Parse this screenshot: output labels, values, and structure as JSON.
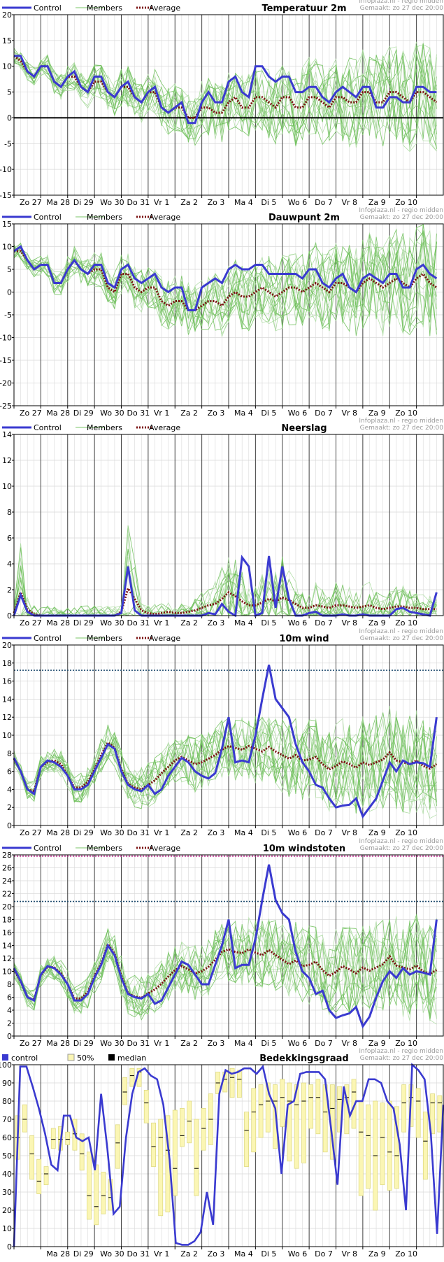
{
  "source": "Infoplaza.nl - regio midden",
  "made": "Gemaakt: zo 27 dec 20:00",
  "legend": {
    "control": "Control",
    "members": "Members",
    "average": "Average"
  },
  "cloud_legend": {
    "control": "control",
    "band": "50%",
    "median": "median"
  },
  "colors": {
    "control": "#3a3ad0",
    "members": "#6fbf5a",
    "members_light": "#a6d89a",
    "average": "#7a1010",
    "box_fill": "#fbf6b4",
    "box_edge": "#dcd87a",
    "grid": "#d8d8d8",
    "day_line": "#404040"
  },
  "days": [
    "Zo 27",
    "Ma 28",
    "Di 29",
    "Wo 30",
    "Do 31",
    "Vr 1",
    "Za 2",
    "Zo 3",
    "Ma 4",
    "Di 5",
    "Wo 6",
    "Do 7",
    "Vr 8",
    "Za 9",
    "Zo 10"
  ],
  "cloud_days": [
    "",
    "Ma 28",
    "Di 29",
    "Wo 30",
    "Do 31",
    "Vr 1",
    "Za 2",
    "Zo 3",
    "Ma 4",
    "Di 5",
    "Wo 6",
    "Do 7",
    "Vr 8",
    "Za 9",
    "Zo 10"
  ],
  "chart_data": [
    {
      "type": "line",
      "title": "Temperatuur 2m",
      "ylim": [
        -15,
        20
      ],
      "yticks": [
        -15,
        -10,
        -5,
        0,
        5,
        10,
        15,
        20
      ],
      "zero_line": true,
      "hlines": [],
      "x_unit": "6-hour steps from Zo 27",
      "series": [
        {
          "name": "Control",
          "values": [
            12,
            12,
            9,
            8,
            10,
            10,
            7,
            6,
            8,
            9,
            6,
            5,
            8,
            8,
            5,
            4,
            6,
            7,
            4,
            3,
            5,
            6,
            2,
            1,
            2,
            3,
            -1,
            -1,
            3,
            5,
            3,
            3,
            7,
            8,
            5,
            4,
            10,
            10,
            8,
            7,
            8,
            8,
            5,
            5,
            6,
            6,
            4,
            3,
            5,
            6,
            5,
            4,
            6,
            6,
            2,
            2,
            4,
            4,
            3,
            3,
            6,
            6,
            5,
            5
          ]
        },
        {
          "name": "Average",
          "values": [
            12,
            11,
            9,
            8,
            10,
            10,
            7,
            6,
            8,
            8,
            6,
            5,
            7,
            7,
            5,
            4,
            6,
            6,
            4,
            3,
            5,
            5,
            2,
            1,
            2,
            2,
            0,
            0,
            2,
            2,
            1,
            1,
            3,
            4,
            2,
            2,
            4,
            4,
            3,
            2,
            4,
            4,
            2,
            2,
            4,
            4,
            3,
            2,
            4,
            4,
            3,
            3,
            5,
            5,
            3,
            3,
            5,
            5,
            4,
            3,
            5,
            5,
            4,
            3
          ]
        }
      ]
    },
    {
      "type": "line",
      "title": "Dauwpunt 2m",
      "ylim": [
        -25,
        15
      ],
      "yticks": [
        -25,
        -20,
        -15,
        -10,
        -5,
        0,
        5,
        10,
        15
      ],
      "zero_line": false,
      "hlines": [],
      "x_unit": "6-hour steps from Zo 27",
      "series": [
        {
          "name": "Control",
          "values": [
            9,
            10,
            7,
            5,
            6,
            6,
            2,
            2,
            5,
            7,
            5,
            4,
            6,
            6,
            2,
            1,
            5,
            6,
            3,
            2,
            3,
            4,
            1,
            0,
            1,
            1,
            -4,
            -4,
            1,
            2,
            3,
            2,
            5,
            6,
            5,
            5,
            6,
            6,
            4,
            4,
            4,
            4,
            4,
            3,
            5,
            5,
            2,
            1,
            3,
            4,
            1,
            0,
            3,
            4,
            3,
            2,
            4,
            4,
            1,
            1,
            5,
            6,
            4,
            3
          ]
        },
        {
          "name": "Average",
          "values": [
            9,
            9,
            7,
            5,
            6,
            6,
            2,
            2,
            5,
            7,
            5,
            4,
            5,
            5,
            1,
            0,
            4,
            4,
            1,
            0,
            1,
            1,
            -2,
            -3,
            -2,
            -2,
            -4,
            -4,
            -3,
            -2,
            -2,
            -3,
            -1,
            0,
            -1,
            -1,
            0,
            1,
            0,
            -1,
            0,
            1,
            1,
            0,
            1,
            2,
            1,
            0,
            2,
            2,
            1,
            0,
            2,
            3,
            2,
            1,
            2,
            3,
            2,
            1,
            3,
            4,
            2,
            1
          ]
        }
      ]
    },
    {
      "type": "line",
      "title": "Neerslag",
      "ylim": [
        0,
        14
      ],
      "yticks": [
        0,
        2,
        4,
        6,
        8,
        10,
        12,
        14
      ],
      "zero_line": false,
      "hlines": [],
      "x_unit": "6-hour steps from Zo 27",
      "series": [
        {
          "name": "Control",
          "values": [
            0,
            1.6,
            0.3,
            0,
            0,
            0,
            0,
            0,
            0,
            0,
            0,
            0,
            0,
            0,
            0,
            0,
            0.2,
            3.8,
            0.4,
            0,
            0,
            0,
            0,
            0,
            0,
            0,
            0,
            0,
            0,
            0.2,
            0.1,
            0.9,
            0.3,
            0,
            4.5,
            3.8,
            0,
            0.2,
            4.6,
            0.6,
            3.8,
            1.3,
            0,
            0,
            0.2,
            0.3,
            0,
            0,
            0,
            0.1,
            0,
            0,
            0.1,
            0,
            0,
            0,
            0,
            0.5,
            0.6,
            0.3,
            0.2,
            0.1,
            0,
            1.8
          ]
        },
        {
          "name": "Average",
          "values": [
            0.2,
            1.8,
            0.5,
            0.1,
            0,
            0,
            0,
            0,
            0,
            0,
            0,
            0,
            0,
            0,
            0,
            0,
            0.3,
            2.1,
            1.3,
            0.4,
            0.2,
            0.1,
            0.2,
            0.3,
            0.2,
            0.2,
            0.3,
            0.4,
            0.6,
            0.8,
            0.9,
            1.3,
            1.8,
            1.5,
            1.1,
            0.8,
            0.8,
            1,
            1.3,
            1.1,
            1.4,
            1.2,
            0.9,
            0.6,
            0.6,
            0.8,
            0.7,
            0.6,
            0.8,
            0.8,
            0.7,
            0.6,
            0.7,
            0.8,
            0.6,
            0.5,
            0.6,
            0.7,
            0.7,
            0.6,
            0.6,
            0.5,
            0.5,
            0.5
          ]
        }
      ]
    },
    {
      "type": "line",
      "title": "10m wind",
      "ylim": [
        0,
        20
      ],
      "yticks": [
        0,
        2,
        4,
        6,
        8,
        10,
        12,
        14,
        16,
        18,
        20
      ],
      "zero_line": false,
      "hlines": [
        17.2
      ],
      "x_unit": "6-hour steps from Zo 27",
      "series": [
        {
          "name": "Control",
          "values": [
            7.5,
            6,
            4,
            3.5,
            6.5,
            7.2,
            7,
            6.5,
            5.5,
            4,
            4,
            4.5,
            6,
            7.5,
            9,
            8.5,
            6,
            4.5,
            4,
            3.8,
            4.5,
            3.5,
            4,
            5.5,
            6.5,
            7.5,
            7,
            6,
            5.5,
            5.2,
            5.8,
            8.5,
            12,
            7,
            7.2,
            7,
            10,
            14,
            17.8,
            14,
            13,
            12,
            9,
            7,
            6,
            4.5,
            4.2,
            3,
            2,
            2.2,
            2.3,
            3,
            1,
            2,
            3,
            5,
            7,
            6,
            7.2,
            6.8,
            7,
            6.9,
            6.5,
            12
          ]
        },
        {
          "name": "Average",
          "values": [
            7.4,
            6,
            4,
            3.8,
            6.5,
            7,
            7.2,
            6.8,
            5.5,
            4.2,
            4.2,
            4.8,
            6.2,
            7.8,
            9.2,
            8.6,
            6.2,
            4.6,
            4.2,
            4,
            4.5,
            5,
            5.8,
            6.5,
            7.2,
            7.6,
            7.2,
            6.8,
            7,
            7.4,
            7.8,
            8.4,
            8.8,
            8.6,
            8.4,
            8.8,
            8.5,
            8.2,
            8.7,
            8.2,
            7.8,
            7.4,
            7.8,
            7.2,
            7.3,
            7.6,
            6.8,
            6.2,
            6.6,
            7.1,
            6.8,
            6.4,
            7,
            6.7,
            7,
            7.3,
            8.1,
            7.2,
            7,
            6.8,
            7.2,
            6.6,
            6.3,
            6.8
          ]
        }
      ]
    },
    {
      "type": "line",
      "title": "10m windstoten",
      "ylim": [
        0,
        28
      ],
      "yticks": [
        0,
        2,
        4,
        6,
        8,
        10,
        12,
        14,
        16,
        18,
        20,
        22,
        24,
        26,
        28
      ],
      "zero_line": false,
      "hlines": [
        20.8,
        27.8
      ],
      "x_unit": "6-hour steps from Zo 27",
      "series": [
        {
          "name": "Control",
          "values": [
            10.5,
            8.5,
            6,
            5.5,
            9.5,
            10.8,
            10.5,
            9.5,
            8,
            5.5,
            5.5,
            6.5,
            9,
            11,
            14,
            12.5,
            9,
            6.5,
            6,
            5.8,
            6.5,
            5,
            5.5,
            7.5,
            9.5,
            11.5,
            11,
            9.5,
            8,
            8,
            11,
            14,
            18,
            10.5,
            11,
            11,
            15,
            21,
            26.5,
            21,
            19,
            18,
            13,
            10,
            9,
            6.5,
            7,
            4,
            2.8,
            3.2,
            3.5,
            4.5,
            1.5,
            3,
            6,
            8.5,
            10,
            9,
            10.5,
            9.5,
            10,
            9.8,
            9.5,
            18
          ]
        },
        {
          "name": "Average",
          "values": [
            10.3,
            8.4,
            6,
            5.6,
            9.4,
            10.7,
            10.6,
            9.7,
            8,
            5.8,
            5.8,
            6.8,
            9.2,
            11.2,
            14.2,
            12.7,
            9.3,
            6.6,
            6.1,
            5.9,
            6.6,
            7.2,
            8.1,
            9.2,
            10.2,
            10.8,
            10.3,
            9.7,
            10,
            10.7,
            11.8,
            13,
            13.4,
            13,
            12.8,
            13.4,
            12.9,
            12.5,
            13.3,
            12.5,
            11.8,
            11.1,
            11.7,
            10.8,
            11,
            11.5,
            10.2,
            9.3,
            9.9,
            10.8,
            10.3,
            9.7,
            10.6,
            10.1,
            10.6,
            11.1,
            12.3,
            10.9,
            10.6,
            10.3,
            10.9,
            10,
            9.6,
            10.2
          ]
        }
      ]
    },
    {
      "type": "bar",
      "title": "Bedekkingsgraad",
      "ylim": [
        0,
        100
      ],
      "yticks": [
        0,
        10,
        20,
        30,
        40,
        50,
        60,
        70,
        80,
        90,
        100
      ],
      "x_unit": "6-hour steps from Zo 27",
      "series": [
        {
          "name": "control",
          "values": [
            0,
            99,
            99,
            88,
            76,
            62,
            45,
            42,
            72,
            72,
            60,
            58,
            60,
            42,
            84,
            54,
            18,
            22,
            60,
            84,
            96,
            98,
            94,
            92,
            78,
            48,
            2,
            1,
            1,
            3,
            8,
            30,
            12,
            84,
            97,
            95,
            96,
            98,
            98,
            95,
            99,
            84,
            76,
            40,
            78,
            80,
            95,
            96,
            96,
            96,
            92,
            64,
            34,
            88,
            72,
            80,
            80,
            92,
            92,
            90,
            80,
            76,
            56,
            20,
            100,
            97,
            92,
            62,
            7,
            78
          ]
        },
        {
          "name": "median",
          "values": [
            60,
            70,
            51,
            36,
            40,
            59,
            59,
            59,
            62,
            51,
            28,
            22,
            28,
            27,
            57,
            85,
            94,
            96,
            79,
            55,
            60,
            53,
            43,
            61,
            69,
            43,
            65,
            70,
            90,
            92,
            93,
            92,
            64,
            74,
            78,
            80,
            80,
            82,
            80,
            78,
            80,
            82,
            82,
            74,
            76,
            81,
            82,
            85,
            63,
            61,
            50,
            60,
            52,
            50,
            79,
            82,
            80,
            58,
            79,
            79
          ]
        },
        {
          "name": "50% low",
          "values": [
            48,
            63,
            37,
            29,
            34,
            54,
            53,
            56,
            53,
            42,
            15,
            12,
            18,
            20,
            43,
            78,
            88,
            88,
            68,
            44,
            17,
            19,
            28,
            55,
            57,
            28,
            53,
            56,
            84,
            85,
            82,
            82,
            44,
            52,
            60,
            63,
            54,
            66,
            47,
            43,
            46,
            65,
            62,
            52,
            48,
            63,
            62,
            65,
            28,
            32,
            20,
            34,
            31,
            32,
            63,
            66,
            60,
            37,
            62,
            63
          ]
        },
        {
          "name": "50% high",
          "values": [
            72,
            78,
            61,
            48,
            44,
            65,
            66,
            63,
            70,
            62,
            52,
            45,
            41,
            37,
            67,
            93,
            98,
            98,
            86,
            68,
            70,
            72,
            75,
            76,
            80,
            70,
            76,
            84,
            96,
            96,
            98,
            97,
            74,
            87,
            89,
            90,
            89,
            92,
            90,
            89,
            90,
            89,
            92,
            89,
            89,
            88,
            89,
            92,
            80,
            78,
            80,
            79,
            80,
            77,
            89,
            89,
            87,
            74,
            84,
            83
          ]
        }
      ]
    }
  ]
}
